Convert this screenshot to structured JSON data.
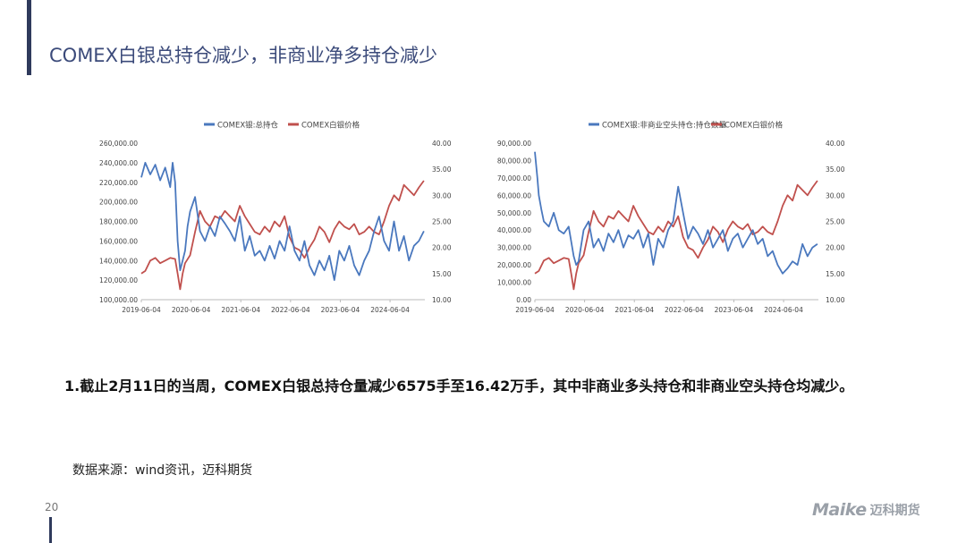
{
  "page": {
    "title": "COMEX白银总持仓减少，非商业净多持仓减少",
    "body_text": "1.截止2月11日的当周，COMEX白银总持仓量减少6575手至16.42万手，其中非商业多头持仓和非商业空头持仓均减少。",
    "source": "数据来源：wind资讯，迈科期货",
    "page_number": "20",
    "logo_text": "Maike",
    "logo_cn": "迈科期货",
    "colors": {
      "accent": "#2f3a5c",
      "title": "#3b4a7a",
      "series_blue": "#4a78be",
      "series_red": "#c0504d"
    }
  },
  "chart_data": [
    {
      "type": "line",
      "legend": [
        "COMEX银:总持仓",
        "COMEX白银价格"
      ],
      "legend_position": "top",
      "x_ticks": [
        "2019-06-04",
        "2020-06-04",
        "2021-06-04",
        "2022-06-04",
        "2023-06-04",
        "2024-06-04"
      ],
      "y_left_ticks": [
        "260,000.00",
        "240,000.00",
        "220,000.00",
        "200,000.00",
        "180,000.00",
        "160,000.00",
        "140,000.00",
        "120,000.00",
        "100,000.00"
      ],
      "y_right_ticks": [
        "40.00",
        "35.00",
        "30.00",
        "25.00",
        "20.00",
        "15.00",
        "10.00"
      ],
      "ylim_left": [
        100000,
        260000
      ],
      "ylim_right": [
        10,
        40
      ],
      "xlim": [
        2019.42,
        2025.12
      ],
      "series": [
        {
          "name": "COMEX银:总持仓",
          "axis": "left",
          "color": "#4a78be",
          "x": [
            2019.42,
            2019.5,
            2019.6,
            2019.7,
            2019.8,
            2019.9,
            2020.0,
            2020.05,
            2020.1,
            2020.15,
            2020.2,
            2020.25,
            2020.3,
            2020.35,
            2020.4,
            2020.5,
            2020.6,
            2020.7,
            2020.8,
            2020.9,
            2021.0,
            2021.1,
            2021.2,
            2021.3,
            2021.4,
            2021.5,
            2021.6,
            2021.7,
            2021.8,
            2021.9,
            2022.0,
            2022.1,
            2022.2,
            2022.3,
            2022.4,
            2022.5,
            2022.6,
            2022.7,
            2022.8,
            2022.9,
            2023.0,
            2023.1,
            2023.2,
            2023.3,
            2023.4,
            2023.5,
            2023.6,
            2023.7,
            2023.8,
            2023.9,
            2024.0,
            2024.1,
            2024.2,
            2024.3,
            2024.4,
            2024.5,
            2024.6,
            2024.7,
            2024.8,
            2024.9,
            2025.0,
            2025.1
          ],
          "values": [
            225000,
            240000,
            228000,
            238000,
            222000,
            235000,
            215000,
            240000,
            220000,
            160000,
            130000,
            140000,
            150000,
            175000,
            190000,
            205000,
            170000,
            160000,
            175000,
            165000,
            185000,
            178000,
            170000,
            160000,
            185000,
            150000,
            165000,
            145000,
            150000,
            140000,
            155000,
            142000,
            160000,
            150000,
            175000,
            150000,
            140000,
            160000,
            135000,
            125000,
            140000,
            130000,
            145000,
            120000,
            150000,
            140000,
            155000,
            135000,
            125000,
            140000,
            150000,
            170000,
            185000,
            160000,
            150000,
            180000,
            150000,
            165000,
            140000,
            155000,
            160000,
            170000
          ]
        },
        {
          "name": "COMEX白银价格",
          "axis": "right",
          "color": "#c0504d",
          "x": [
            2019.42,
            2019.5,
            2019.6,
            2019.7,
            2019.8,
            2019.9,
            2020.0,
            2020.1,
            2020.15,
            2020.2,
            2020.25,
            2020.3,
            2020.4,
            2020.5,
            2020.6,
            2020.7,
            2020.8,
            2020.9,
            2021.0,
            2021.1,
            2021.2,
            2021.3,
            2021.4,
            2021.5,
            2021.6,
            2021.7,
            2021.8,
            2021.9,
            2022.0,
            2022.1,
            2022.2,
            2022.3,
            2022.4,
            2022.5,
            2022.6,
            2022.7,
            2022.8,
            2022.9,
            2023.0,
            2023.1,
            2023.2,
            2023.3,
            2023.4,
            2023.5,
            2023.6,
            2023.7,
            2023.8,
            2023.9,
            2024.0,
            2024.1,
            2024.2,
            2024.3,
            2024.4,
            2024.5,
            2024.6,
            2024.7,
            2024.8,
            2024.9,
            2025.0,
            2025.1
          ],
          "values": [
            15.0,
            15.5,
            17.5,
            18.0,
            17.0,
            17.5,
            18.0,
            17.8,
            15.0,
            12.0,
            15.0,
            17.0,
            18.5,
            23.0,
            27.0,
            25.0,
            24.0,
            26.0,
            25.5,
            27.0,
            26.0,
            25.0,
            28.0,
            26.0,
            24.5,
            23.0,
            22.5,
            24.0,
            23.0,
            25.0,
            24.0,
            26.0,
            22.0,
            20.0,
            19.5,
            18.0,
            20.0,
            21.5,
            24.0,
            23.0,
            21.0,
            23.5,
            25.0,
            24.0,
            23.5,
            24.5,
            22.5,
            23.0,
            24.0,
            23.0,
            22.5,
            25.0,
            28.0,
            30.0,
            29.0,
            32.0,
            31.0,
            30.0,
            31.5,
            32.8
          ]
        }
      ]
    },
    {
      "type": "line",
      "legend": [
        "COMEX银:非商业空头持仓:持仓数量",
        "COMEX白银价格"
      ],
      "legend_position": "top",
      "x_ticks": [
        "2019-06-04",
        "2020-06-04",
        "2021-06-04",
        "2022-06-04",
        "2023-06-04",
        "2024-06-04"
      ],
      "y_left_ticks": [
        "90,000.00",
        "80,000.00",
        "70,000.00",
        "60,000.00",
        "50,000.00",
        "40,000.00",
        "30,000.00",
        "20,000.00",
        "10,000.00",
        "0.00"
      ],
      "y_right_ticks": [
        "40.00",
        "35.00",
        "30.00",
        "25.00",
        "20.00",
        "15.00",
        "10.00"
      ],
      "ylim_left": [
        0,
        90000
      ],
      "ylim_right": [
        10,
        40
      ],
      "xlim": [
        2019.42,
        2025.12
      ],
      "series": [
        {
          "name": "COMEX银:非商业空头持仓:持仓数量",
          "axis": "left",
          "color": "#4a78be",
          "x": [
            2019.42,
            2019.47,
            2019.5,
            2019.55,
            2019.6,
            2019.7,
            2019.8,
            2019.9,
            2020.0,
            2020.1,
            2020.2,
            2020.25,
            2020.3,
            2020.4,
            2020.5,
            2020.6,
            2020.7,
            2020.8,
            2020.9,
            2021.0,
            2021.1,
            2021.2,
            2021.3,
            2021.4,
            2021.5,
            2021.6,
            2021.7,
            2021.8,
            2021.9,
            2022.0,
            2022.1,
            2022.2,
            2022.3,
            2022.4,
            2022.5,
            2022.6,
            2022.7,
            2022.8,
            2022.9,
            2023.0,
            2023.1,
            2023.2,
            2023.3,
            2023.4,
            2023.5,
            2023.6,
            2023.7,
            2023.8,
            2023.9,
            2024.0,
            2024.1,
            2024.2,
            2024.3,
            2024.4,
            2024.5,
            2024.6,
            2024.7,
            2024.8,
            2024.9,
            2025.0,
            2025.1
          ],
          "values": [
            85000,
            70000,
            60000,
            52000,
            45000,
            42000,
            50000,
            40000,
            38000,
            42000,
            25000,
            20000,
            22000,
            40000,
            45000,
            30000,
            35000,
            28000,
            38000,
            33000,
            40000,
            30000,
            37000,
            35000,
            40000,
            30000,
            38000,
            20000,
            35000,
            30000,
            40000,
            45000,
            65000,
            50000,
            35000,
            42000,
            38000,
            32000,
            40000,
            30000,
            35000,
            40000,
            28000,
            35000,
            38000,
            30000,
            35000,
            40000,
            32000,
            35000,
            25000,
            28000,
            20000,
            15000,
            18000,
            22000,
            20000,
            32000,
            25000,
            30000,
            32000
          ]
        },
        {
          "name": "COMEX白银价格",
          "axis": "right",
          "color": "#c0504d",
          "x": [
            2019.42,
            2019.5,
            2019.6,
            2019.7,
            2019.8,
            2019.9,
            2020.0,
            2020.1,
            2020.15,
            2020.2,
            2020.25,
            2020.3,
            2020.4,
            2020.5,
            2020.6,
            2020.7,
            2020.8,
            2020.9,
            2021.0,
            2021.1,
            2021.2,
            2021.3,
            2021.4,
            2021.5,
            2021.6,
            2021.7,
            2021.8,
            2021.9,
            2022.0,
            2022.1,
            2022.2,
            2022.3,
            2022.4,
            2022.5,
            2022.6,
            2022.7,
            2022.8,
            2022.9,
            2023.0,
            2023.1,
            2023.2,
            2023.3,
            2023.4,
            2023.5,
            2023.6,
            2023.7,
            2023.8,
            2023.9,
            2024.0,
            2024.1,
            2024.2,
            2024.3,
            2024.4,
            2024.5,
            2024.6,
            2024.7,
            2024.8,
            2024.9,
            2025.0,
            2025.1
          ],
          "values": [
            15.0,
            15.5,
            17.5,
            18.0,
            17.0,
            17.5,
            18.0,
            17.8,
            15.0,
            12.0,
            15.0,
            17.0,
            18.5,
            23.0,
            27.0,
            25.0,
            24.0,
            26.0,
            25.5,
            27.0,
            26.0,
            25.0,
            28.0,
            26.0,
            24.5,
            23.0,
            22.5,
            24.0,
            23.0,
            25.0,
            24.0,
            26.0,
            22.0,
            20.0,
            19.5,
            18.0,
            20.0,
            21.5,
            24.0,
            23.0,
            21.0,
            23.5,
            25.0,
            24.0,
            23.5,
            24.5,
            22.5,
            23.0,
            24.0,
            23.0,
            22.5,
            25.0,
            28.0,
            30.0,
            29.0,
            32.0,
            31.0,
            30.0,
            31.5,
            32.8
          ]
        }
      ]
    }
  ]
}
